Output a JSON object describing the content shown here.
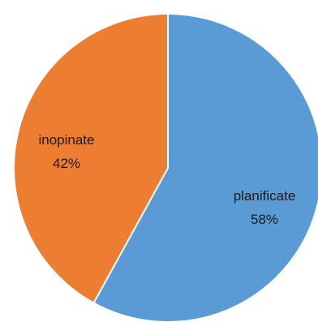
{
  "chart_data": {
    "type": "pie",
    "start_angle_deg": 0,
    "direction": "clockwise",
    "slices": [
      {
        "label": "planificate",
        "value": 58,
        "value_label": "58%",
        "color": "#5b9bd5"
      },
      {
        "label": "inopinate",
        "value": 42,
        "value_label": "42%",
        "color": "#ed7d31"
      }
    ],
    "legend": "none",
    "stroke_color": "#ffffff"
  }
}
